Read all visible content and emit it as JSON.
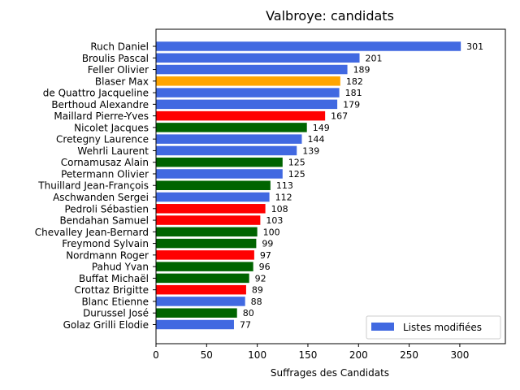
{
  "chart_data": {
    "type": "bar",
    "orientation": "horizontal",
    "title": "Valbroye: candidats",
    "xlabel": "Suffrages des Candidats",
    "ylabel": "",
    "xlim": [
      0,
      345
    ],
    "xticks": [
      0,
      50,
      100,
      150,
      200,
      250,
      300
    ],
    "legend": {
      "label": "Listes modifiées",
      "placement": "lower-right",
      "color": "#4169e1"
    },
    "categories": [
      "Ruch Daniel",
      "Broulis Pascal",
      "Feller Olivier",
      "Blaser Max",
      "de Quattro Jacqueline",
      "Berthoud Alexandre",
      "Maillard Pierre-Yves",
      "Nicolet Jacques",
      "Cretegny Laurence",
      "Wehrli Laurent",
      "Cornamusaz Alain",
      "Petermann Olivier",
      "Thuillard Jean-François",
      "Aschwanden Sergei",
      "Pedroli Sébastien",
      "Bendahan Samuel",
      "Chevalley Jean-Bernard",
      "Freymond Sylvain",
      "Nordmann Roger",
      "Pahud Yvan",
      "Buffat Michaël",
      "Crottaz Brigitte",
      "Blanc Etienne",
      "Durussel José",
      "Golaz Grilli Elodie"
    ],
    "values": [
      301,
      201,
      189,
      182,
      181,
      179,
      167,
      149,
      144,
      139,
      125,
      125,
      113,
      112,
      108,
      103,
      100,
      99,
      97,
      96,
      92,
      89,
      88,
      80,
      77
    ],
    "bar_colors": [
      "#4169e1",
      "#4169e1",
      "#4169e1",
      "#ffa500",
      "#4169e1",
      "#4169e1",
      "#ff0000",
      "#006400",
      "#4169e1",
      "#4169e1",
      "#006400",
      "#4169e1",
      "#006400",
      "#4169e1",
      "#ff0000",
      "#ff0000",
      "#006400",
      "#006400",
      "#ff0000",
      "#006400",
      "#006400",
      "#ff0000",
      "#4169e1",
      "#006400",
      "#4169e1"
    ]
  }
}
